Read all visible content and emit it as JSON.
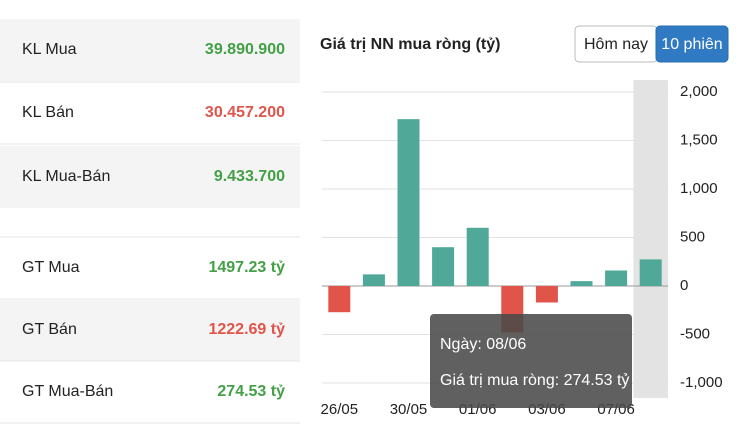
{
  "table": {
    "rows": [
      {
        "label": "KL Mua",
        "value": "39.890.900",
        "color": "#43a047"
      },
      {
        "label": "KL Bán",
        "value": "30.457.200",
        "color": "#e0544a"
      },
      {
        "label": "KL Mua-Bán",
        "value": "9.433.700",
        "color": "#43a047"
      },
      {
        "label": "GT Mua",
        "value": "1497.23 tỷ",
        "color": "#43a047"
      },
      {
        "label": "GT Bán",
        "value": "1222.69 tỷ",
        "color": "#e0544a"
      },
      {
        "label": "GT Mua-Bán",
        "value": "274.53 tỷ",
        "color": "#43a047"
      }
    ]
  },
  "buttons": [
    "Hôm nay",
    "10 phiên"
  ],
  "tooltip": {
    "lines": [
      "Ngày: 08/06",
      "Giá trị mua ròng: 274.53 tỷ"
    ]
  },
  "chart_data": {
    "type": "bar",
    "title": "Giá trị NN mua ròng (tỷ)",
    "categories": [
      "26/05",
      null,
      "30/05",
      null,
      "01/06",
      null,
      "03/06",
      null,
      "07/06",
      null
    ],
    "values": [
      -270,
      120,
      1720,
      400,
      600,
      -480,
      -170,
      50,
      160,
      274.53
    ],
    "positive_color": "#4fa898",
    "negative_color": "#e0544a",
    "ylim": [
      -1000,
      2000
    ],
    "yticks": [
      {
        "value": 2000,
        "label": "2,000"
      },
      {
        "value": 1500,
        "label": "1,500"
      },
      {
        "value": 1000,
        "label": "1,000"
      },
      500,
      0,
      -500,
      {
        "value": -1000,
        "label": "-1,000"
      }
    ],
    "grid": true
  }
}
